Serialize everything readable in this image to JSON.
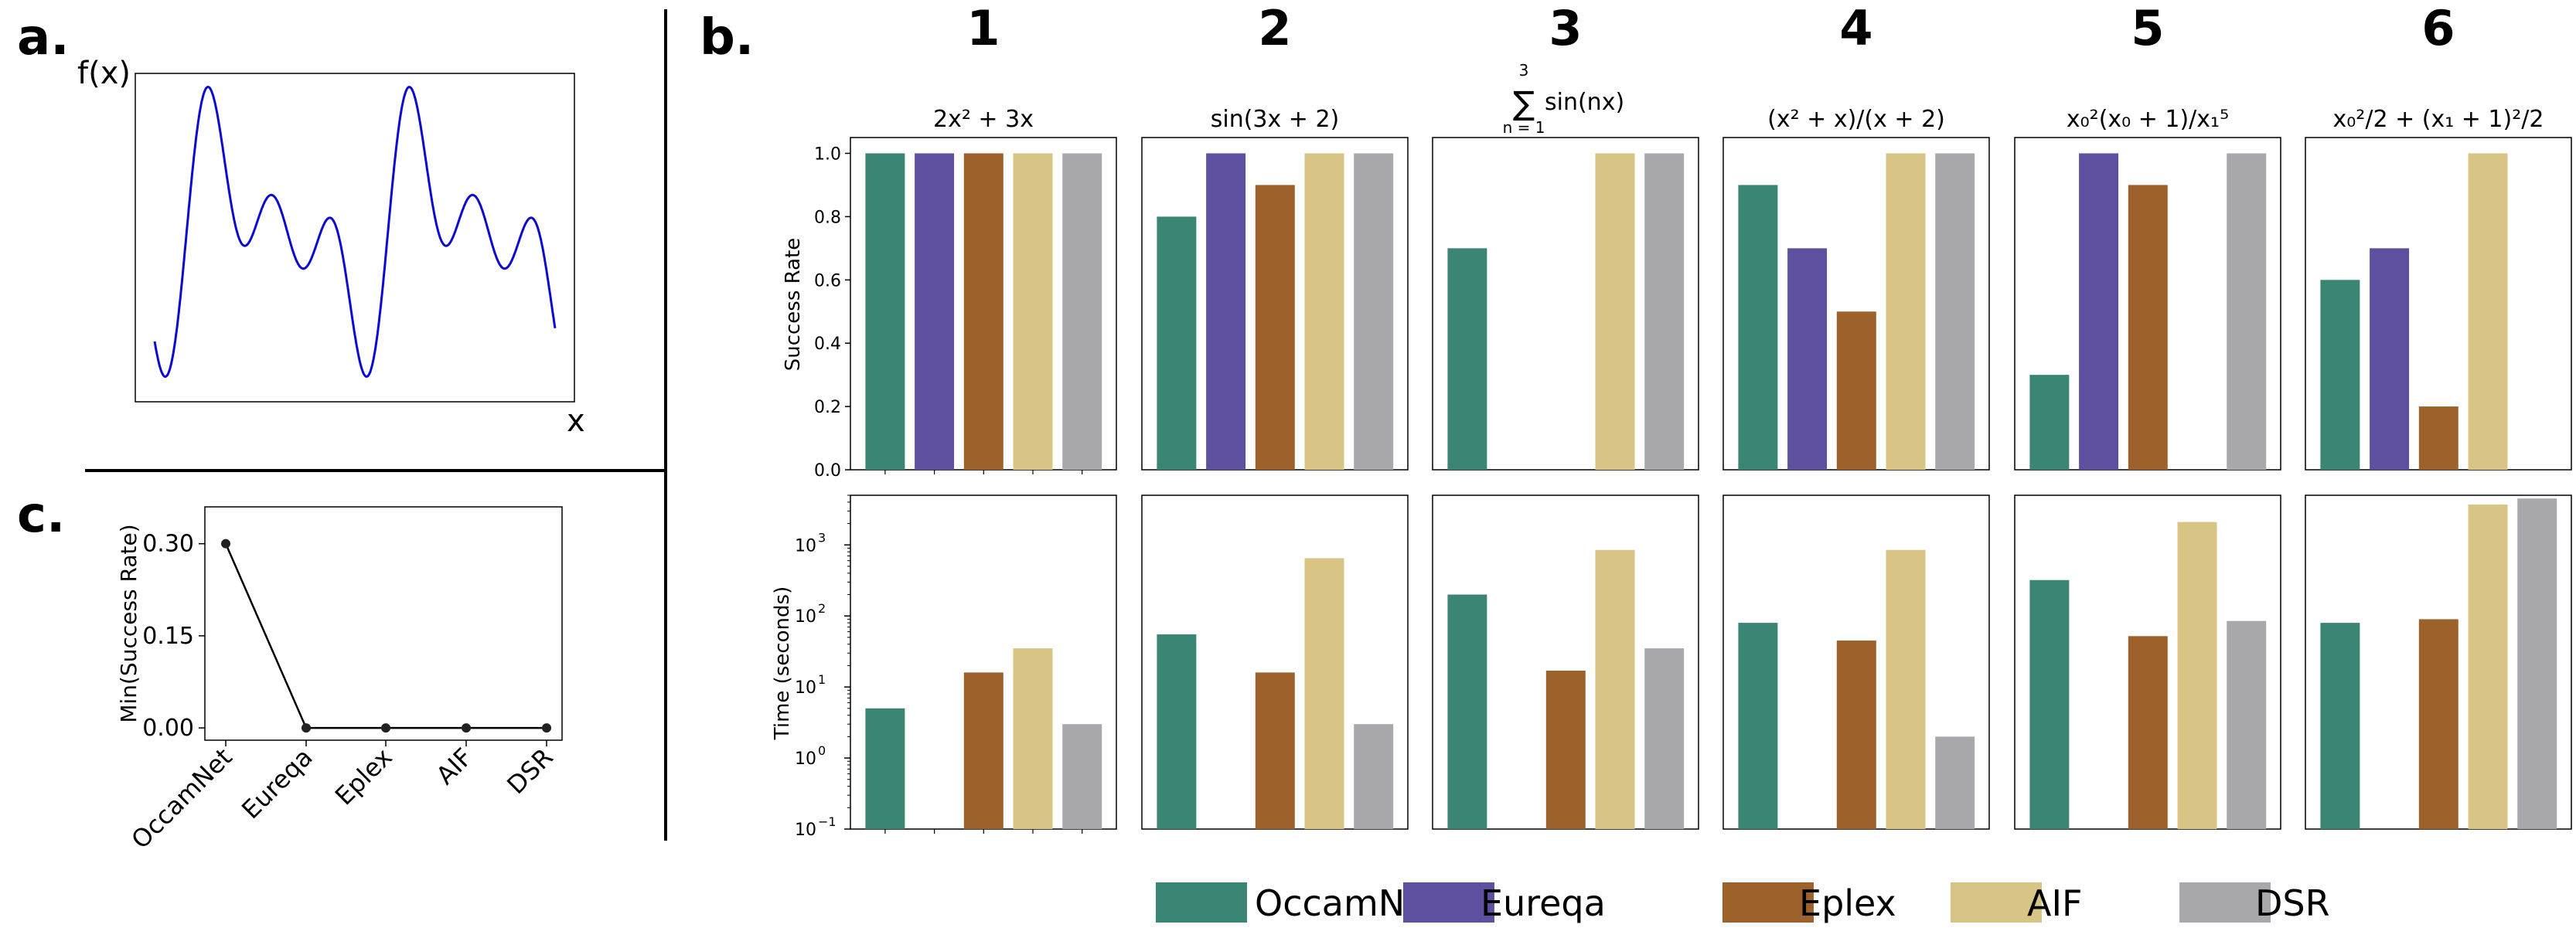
{
  "panel_labels": {
    "a": "a.",
    "b": "b.",
    "c": "c."
  },
  "colors": {
    "OccamNet": "#3b8574",
    "Eureqa": "#5f4f9f",
    "Eplex": "#9d612b",
    "AIF": "#d8c485",
    "DSR": "#a8a8ac",
    "axis": "#000000",
    "curve": "#0a0ad0"
  },
  "panel_a": {
    "ylabel": "f(x)",
    "xlabel": "x"
  },
  "chart_data": [
    {
      "id": "panel_a",
      "type": "line",
      "title": "",
      "xlabel": "x",
      "ylabel": "f(x)",
      "description_series": "f(x) = sum_{n=1}^{3} sin(n x), roughly two periods shown",
      "x_range": [
        -1.0,
        11.5
      ],
      "series": [
        {
          "name": "f(x)",
          "function": "sin(x)+sin(2x)+sin(3x)"
        }
      ]
    },
    {
      "id": "panel_b_success",
      "type": "bar",
      "ylabel": "Success Rate",
      "ylim": [
        0,
        1.05
      ],
      "yticks": [
        "0.0",
        "0.2",
        "0.4",
        "0.6",
        "0.8",
        "1.0"
      ],
      "methods": [
        "OccamNet",
        "Eureqa",
        "Eplex",
        "AIF",
        "DSR"
      ],
      "subplots": [
        {
          "number": "1",
          "title": "2x² + 3x",
          "values": [
            1.0,
            1.0,
            1.0,
            1.0,
            1.0
          ]
        },
        {
          "number": "2",
          "title": "sin(3x + 2)",
          "values": [
            0.8,
            1.0,
            0.9,
            1.0,
            1.0
          ]
        },
        {
          "number": "3",
          "title_sum_top": "3",
          "title_sum_bottom": "n = 1",
          "title": "sin(nx)",
          "values": [
            0.7,
            0.0,
            0.0,
            1.0,
            1.0
          ]
        },
        {
          "number": "4",
          "title": "(x² + x)/(x + 2)",
          "values": [
            0.9,
            0.7,
            0.5,
            1.0,
            1.0
          ]
        },
        {
          "number": "5",
          "title": "x₀²(x₀ + 1)/x₁⁵",
          "values": [
            0.3,
            1.0,
            0.9,
            0.0,
            1.0
          ]
        },
        {
          "number": "6",
          "title": "x₀²/2 + (x₁ + 1)²/2",
          "values": [
            0.6,
            0.7,
            0.2,
            1.0,
            0.0
          ]
        }
      ]
    },
    {
      "id": "panel_b_time",
      "type": "bar",
      "ylabel": "Time (seconds)",
      "yscale": "log",
      "ylim": [
        0.1,
        5000
      ],
      "yticks": [
        {
          "base": "10",
          "exp": "−1"
        },
        {
          "base": "10",
          "exp": "0"
        },
        {
          "base": "10",
          "exp": "1"
        },
        {
          "base": "10",
          "exp": "2"
        },
        {
          "base": "10",
          "exp": "3"
        }
      ],
      "methods": [
        "OccamNet",
        "Eureqa",
        "Eplex",
        "AIF",
        "DSR"
      ],
      "subplots": [
        {
          "number": "1",
          "values": [
            5,
            null,
            16,
            35,
            3
          ]
        },
        {
          "number": "2",
          "values": [
            55,
            null,
            16,
            650,
            3
          ]
        },
        {
          "number": "3",
          "values": [
            200,
            null,
            17,
            850,
            35
          ]
        },
        {
          "number": "4",
          "values": [
            80,
            null,
            45,
            850,
            2
          ]
        },
        {
          "number": "5",
          "values": [
            320,
            null,
            52,
            2100,
            85
          ]
        },
        {
          "number": "6",
          "values": [
            80,
            null,
            90,
            3700,
            4500
          ]
        }
      ]
    },
    {
      "id": "panel_c",
      "type": "line",
      "title": "",
      "xlabel": "",
      "ylabel": "Min(Success Rate)",
      "ylim": [
        -0.02,
        0.36
      ],
      "yticks": [
        "0.00",
        "0.15",
        "0.30"
      ],
      "categories": [
        "OccamNet",
        "Eureqa",
        "Eplex",
        "AIF",
        "DSR"
      ],
      "values": [
        0.3,
        0.0,
        0.0,
        0.0,
        0.0
      ]
    }
  ],
  "legend": {
    "placement": "bottom",
    "items": [
      "OccamNet",
      "Eureqa",
      "Eplex",
      "AIF",
      "DSR"
    ]
  }
}
